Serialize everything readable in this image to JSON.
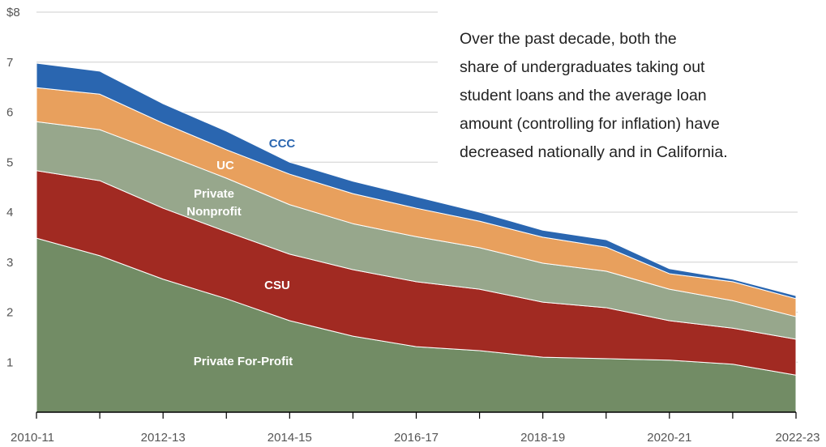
{
  "chart_data": {
    "type": "stacked_area",
    "categories": [
      "2010-11",
      null,
      "2012-13",
      null,
      "2014-15",
      null,
      "2016-17",
      null,
      "2018-19",
      null,
      "2020-21",
      null,
      "2022-23"
    ],
    "series": [
      {
        "name": "Private For-Profit",
        "color": "#728c65",
        "label_color": "#ffffff",
        "values": [
          3.48,
          3.13,
          2.66,
          2.27,
          1.83,
          1.52,
          1.31,
          1.23,
          1.1,
          1.07,
          1.04,
          0.96,
          0.74
        ]
      },
      {
        "name": "CSU",
        "color": "#a12a22",
        "label_color": "#ffffff",
        "values": [
          1.35,
          1.5,
          1.42,
          1.34,
          1.33,
          1.33,
          1.3,
          1.23,
          1.1,
          1.02,
          0.79,
          0.72,
          0.72
        ]
      },
      {
        "name": "Private Nonprofit",
        "color": "#97a78c",
        "label_color": "#ffffff",
        "values": [
          0.98,
          1.02,
          1.09,
          1.07,
          0.99,
          0.92,
          0.9,
          0.83,
          0.78,
          0.73,
          0.63,
          0.55,
          0.45
        ]
      },
      {
        "name": "UC",
        "color": "#e8a05d",
        "label_color": "#ffffff",
        "values": [
          0.68,
          0.71,
          0.61,
          0.57,
          0.61,
          0.6,
          0.57,
          0.53,
          0.52,
          0.48,
          0.31,
          0.38,
          0.36
        ]
      },
      {
        "name": "CCC",
        "color": "#2a66b0",
        "label_color": "#2a66b0",
        "values": [
          0.49,
          0.46,
          0.39,
          0.37,
          0.24,
          0.25,
          0.23,
          0.18,
          0.14,
          0.15,
          0.1,
          0.05,
          0.06
        ]
      }
    ],
    "ylim": [
      0,
      8
    ],
    "yticks": [
      1,
      2,
      3,
      4,
      5,
      6,
      7,
      {
        "value": 8,
        "label": "$8"
      }
    ],
    "grid": true,
    "annotation": [
      "Over the past decade, both the",
      "share of undergraduates taking out",
      "student loans and the average loan",
      "amount (controlling for inflation) have",
      "decreased nationally and in California."
    ]
  }
}
